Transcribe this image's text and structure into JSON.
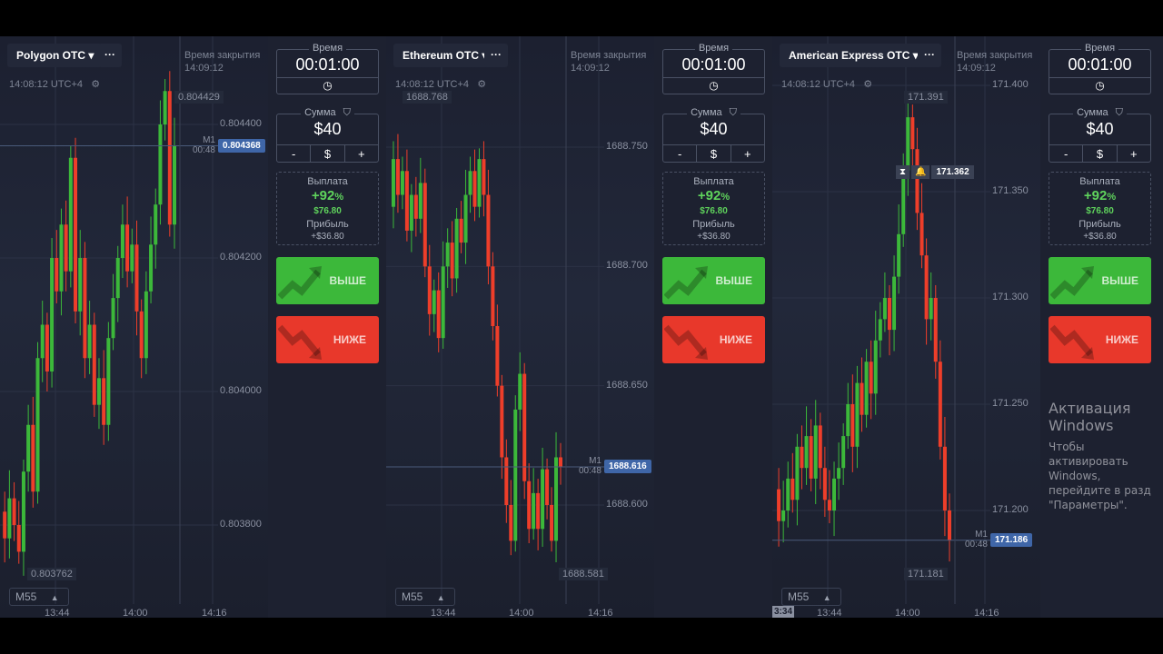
{
  "colors": {
    "up": "#3cb83a",
    "down": "#ee3e2a",
    "accent": "#3f66a8",
    "call_button": "#3cb83a",
    "put_button": "#e8382b"
  },
  "panels": [
    {
      "asset": "Polygon OTC",
      "more": "···",
      "clock": "14:08:12 UTC+4",
      "close_label": "Время закрытия",
      "close_time": "14:09:12",
      "ticks": [
        "0.804400",
        "0.804200",
        "0.804000",
        "0.803800"
      ],
      "tick_values": [
        0.8044,
        0.8042,
        0.804,
        0.8038
      ],
      "high_tag": "0.804429",
      "low_tag": "0.803762",
      "price": "0.804368",
      "m1": "M1",
      "countdown": "00:48",
      "timeframe": "M55",
      "x_ticks": [
        "13:44",
        "14:00",
        "14:16"
      ],
      "closes": [
        0.80382,
        0.80378,
        0.80384,
        0.8038,
        0.80376,
        0.80388,
        0.80395,
        0.80385,
        0.80405,
        0.8041,
        0.80403,
        0.8042,
        0.80415,
        0.80425,
        0.80418,
        0.80435,
        0.80412,
        0.8042,
        0.80405,
        0.8041,
        0.80398,
        0.80402,
        0.80395,
        0.80408,
        0.80414,
        0.8042,
        0.80425,
        0.80418,
        0.80422,
        0.80412,
        0.80405,
        0.80415,
        0.80422,
        0.80428,
        0.8044,
        0.80445,
        0.80425,
        0.804368
      ]
    },
    {
      "asset": "Ethereum OTC",
      "more": "···",
      "clock": "14:08:12 UTC+4",
      "close_label": "Время закрытия",
      "close_time": "14:09:12",
      "ticks": [
        "1688.750",
        "1688.700",
        "1688.650",
        "1688.600"
      ],
      "tick_values": [
        1688.75,
        1688.7,
        1688.65,
        1688.6
      ],
      "high_tag": "1688.768",
      "low_tag": "1688.581",
      "price": "1688.616",
      "m1": "M1",
      "countdown": "00:48",
      "timeframe": "M55",
      "x_ticks": [
        "13:44",
        "14:00",
        "14:16"
      ],
      "closes": [
        1688.725,
        1688.745,
        1688.73,
        1688.74,
        1688.715,
        1688.73,
        1688.72,
        1688.735,
        1688.7,
        1688.68,
        1688.69,
        1688.67,
        1688.7,
        1688.71,
        1688.695,
        1688.72,
        1688.71,
        1688.73,
        1688.74,
        1688.725,
        1688.745,
        1688.73,
        1688.7,
        1688.675,
        1688.65,
        1688.62,
        1688.6,
        1688.585,
        1688.64,
        1688.655,
        1688.61,
        1688.59,
        1688.605,
        1688.59,
        1688.615,
        1688.6,
        1688.585,
        1688.62,
        1688.616
      ]
    },
    {
      "asset": "American Express OTC",
      "more": "···",
      "clock": "14:08:12 UTC+4",
      "close_label": "Время закрытия",
      "close_time": "14:09:12",
      "ticks": [
        "171.400",
        "171.350",
        "171.300",
        "171.250",
        "171.200"
      ],
      "tick_values": [
        171.4,
        171.35,
        171.3,
        171.25,
        171.2
      ],
      "high_tag": "171.391",
      "low_tag": "171.181",
      "price": "171.186",
      "m1": "M1",
      "countdown": "00:48",
      "timeframe": "M55",
      "crosshair_price": "171.362",
      "start_time": "3:34",
      "x_ticks": [
        "13:44",
        "14:00",
        "14:16"
      ],
      "closes": [
        171.21,
        171.195,
        171.2,
        171.215,
        171.205,
        171.23,
        171.22,
        171.235,
        171.215,
        171.24,
        171.22,
        171.205,
        171.2,
        171.215,
        171.22,
        171.235,
        171.25,
        171.23,
        171.26,
        171.245,
        171.27,
        171.255,
        171.28,
        171.29,
        171.3,
        171.285,
        171.31,
        171.33,
        171.36,
        171.385,
        171.37,
        171.34,
        171.32,
        171.29,
        171.3,
        171.27,
        171.23,
        171.2,
        171.186
      ]
    }
  ],
  "trade": {
    "time_label": "Время",
    "time_value": "00:01:00",
    "amount_label": "Сумма",
    "amount_value": "$40",
    "minus": "-",
    "currency": "$",
    "plus": "+",
    "payout_label": "Выплата",
    "payout_percent": "+92",
    "percent_sign": "%",
    "payout_amount": "$76.80",
    "profit_label": "Прибыль",
    "profit_value": "+$36.80",
    "call_label": "ВЫШЕ",
    "put_label": "НИЖЕ"
  },
  "windows": {
    "title": "Активация Windows",
    "line1": "Чтобы активировать Windows, перейдите в разд",
    "line2": "\"Параметры\"."
  }
}
